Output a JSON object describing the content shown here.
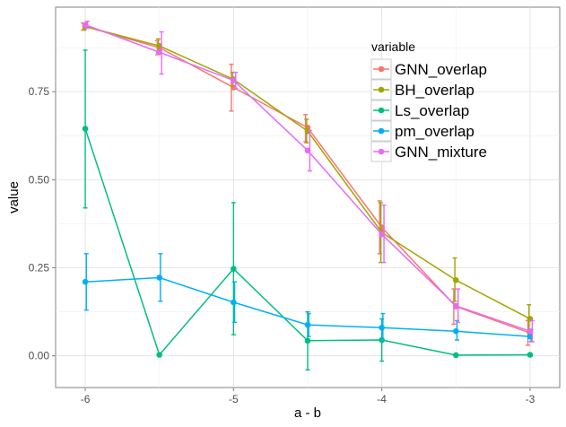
{
  "chart_data": {
    "type": "line",
    "title": "",
    "xlabel": "a - b",
    "ylabel": "value",
    "xlim": [
      -6.2,
      -2.8
    ],
    "ylim": [
      -0.09,
      0.99
    ],
    "xticks": [
      -6,
      -5,
      -4,
      -3
    ],
    "xtick_labels": [
      "-6",
      "-5",
      "-4",
      "-3"
    ],
    "yticks": [
      0,
      0.25,
      0.5,
      0.75
    ],
    "ytick_labels": [
      "0.00",
      "0.25",
      "0.50",
      "0.75"
    ],
    "grid": true,
    "legend": {
      "title": "variable",
      "position": "top-right-inside"
    },
    "series": [
      {
        "name": "GNN_overlap",
        "color": "#F8766D",
        "x": [
          -6,
          -5.5,
          -5,
          -4.5,
          -4,
          -3.5,
          -3
        ],
        "y": [
          0.935,
          0.875,
          0.762,
          0.648,
          0.365,
          0.14,
          0.065
        ],
        "err_low": [
          0.925,
          0.855,
          0.695,
          0.608,
          0.29,
          0.09,
          0.03
        ],
        "err_high": [
          0.945,
          0.895,
          0.828,
          0.685,
          0.44,
          0.19,
          0.1
        ]
      },
      {
        "name": "BH_overlap",
        "color": "#A3A500",
        "x": [
          -6,
          -5.5,
          -5,
          -4.5,
          -4,
          -3.5,
          -3
        ],
        "y": [
          0.935,
          0.88,
          0.785,
          0.638,
          0.35,
          0.215,
          0.105
        ],
        "err_low": [
          0.925,
          0.86,
          0.765,
          0.605,
          0.265,
          0.155,
          0.065
        ],
        "err_high": [
          0.945,
          0.9,
          0.805,
          0.672,
          0.435,
          0.278,
          0.145
        ]
      },
      {
        "name": "Ls_overlap",
        "color": "#00BF7D",
        "x": [
          -6,
          -5.5,
          -5,
          -4.5,
          -4,
          -3.5,
          -3
        ],
        "y": [
          0.645,
          0.003,
          0.247,
          0.043,
          0.045,
          0.002,
          0.003
        ],
        "err_low": [
          0.42,
          null,
          0.06,
          -0.04,
          -0.015,
          null,
          null
        ],
        "err_high": [
          0.868,
          null,
          0.435,
          0.125,
          0.105,
          null,
          null
        ]
      },
      {
        "name": "pm_overlap",
        "color": "#00B0F6",
        "x": [
          -6,
          -5.5,
          -5,
          -4.5,
          -4,
          -3.5,
          -3
        ],
        "y": [
          0.21,
          0.222,
          0.152,
          0.088,
          0.08,
          0.07,
          0.055
        ],
        "err_low": [
          0.13,
          0.155,
          0.095,
          0.055,
          0.045,
          0.045,
          0.04
        ],
        "err_high": [
          0.29,
          0.29,
          0.21,
          0.12,
          0.12,
          0.1,
          0.075
        ]
      },
      {
        "name": "GNN_mixture",
        "color": "#E76BF3",
        "x": [
          -6,
          -5.5,
          -5,
          -4.5,
          -4,
          -3.5,
          -3
        ],
        "y": [
          0.94,
          0.862,
          0.782,
          0.583,
          0.345,
          0.142,
          0.07
        ],
        "err_low": [
          0.93,
          0.8,
          0.76,
          0.525,
          0.265,
          0.095,
          0.04
        ],
        "err_high": [
          0.95,
          0.92,
          0.805,
          0.64,
          0.428,
          0.19,
          0.1
        ]
      }
    ]
  }
}
